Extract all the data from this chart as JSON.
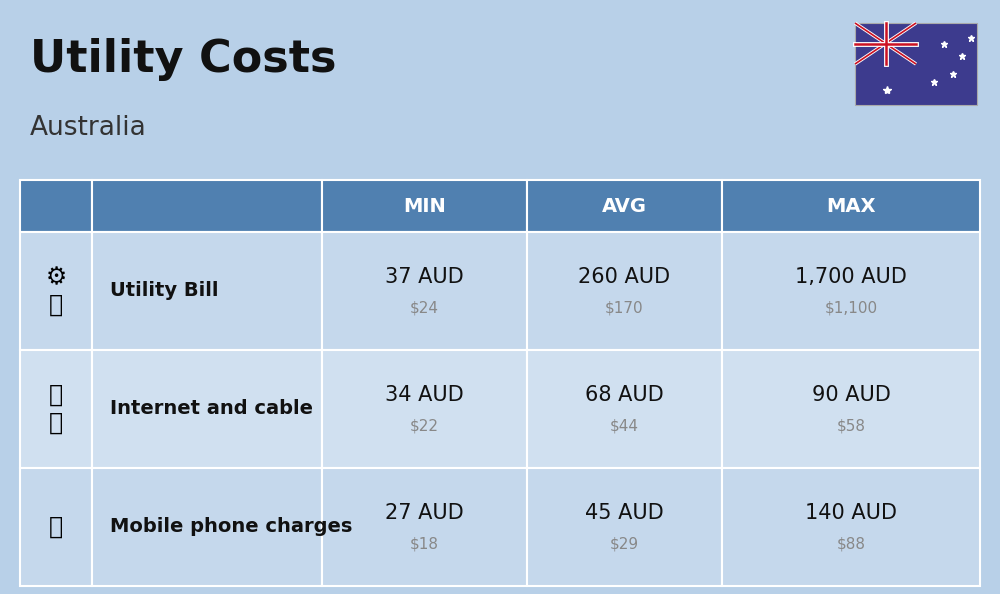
{
  "title": "Utility Costs",
  "subtitle": "Australia",
  "background_color": "#b8d0e8",
  "header_bg_color": "#5080b0",
  "header_text_color": "#ffffff",
  "row_bg_color_even": "#c5d8ec",
  "row_bg_color_odd": "#d0e0f0",
  "table_border_color": "#ffffff",
  "columns": [
    "",
    "",
    "MIN",
    "AVG",
    "MAX"
  ],
  "rows": [
    {
      "label": "Utility Bill",
      "min_aud": "37 AUD",
      "min_usd": "$24",
      "avg_aud": "260 AUD",
      "avg_usd": "$170",
      "max_aud": "1,700 AUD",
      "max_usd": "$1,100"
    },
    {
      "label": "Internet and cable",
      "min_aud": "34 AUD",
      "min_usd": "$22",
      "avg_aud": "68 AUD",
      "avg_usd": "$44",
      "max_aud": "90 AUD",
      "max_usd": "$58"
    },
    {
      "label": "Mobile phone charges",
      "min_aud": "27 AUD",
      "min_usd": "$18",
      "avg_aud": "45 AUD",
      "avg_usd": "$29",
      "max_aud": "140 AUD",
      "max_usd": "$88"
    }
  ],
  "title_fontsize": 32,
  "subtitle_fontsize": 19,
  "header_fontsize": 14,
  "label_fontsize": 14,
  "value_fontsize": 15,
  "subvalue_fontsize": 11,
  "flag_colors": {
    "blue": "#3c3b6e",
    "red": "#b22234",
    "white": "#ffffff"
  }
}
